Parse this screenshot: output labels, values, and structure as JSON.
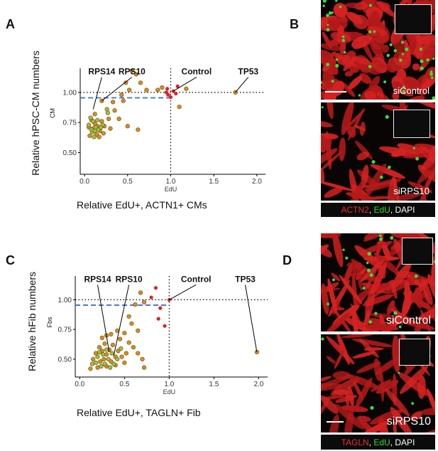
{
  "panels": {
    "A": "A",
    "B": "B",
    "C": "C",
    "D": "D"
  },
  "chart_data": [
    {
      "type": "scatter",
      "panel": "A",
      "title": "",
      "ylabel": "Relative hPSC-CM numbers",
      "ylabel_sub": "CM",
      "xlabel_axis": "EdU",
      "xlabel": "Relative EdU+, ACTN1+ CMs",
      "xlim": [
        -0.05,
        2.1
      ],
      "ylim": [
        0.32,
        1.2
      ],
      "xticks": [
        "0.0",
        "0.5",
        "1.0",
        "1.5",
        "2.0"
      ],
      "xtick_values": [
        0,
        0.5,
        1.0,
        1.5,
        2.0
      ],
      "yticks": [
        "0.50",
        "0.75",
        "1.00"
      ],
      "ytick_values": [
        0.5,
        0.75,
        1.0
      ],
      "hlines": [
        {
          "y": 1.0,
          "style": "dotted",
          "color": "#000000"
        },
        {
          "y": 0.955,
          "style": "dashed",
          "color": "#3a6fd8",
          "x_end": 1.0
        }
      ],
      "vlines": [
        {
          "x": 1.0,
          "style": "dotted",
          "color": "#000000"
        }
      ],
      "annotations": [
        {
          "label": "RPS14",
          "x": 0.2,
          "y": 1.15,
          "px": 0.1,
          "py": 0.86
        },
        {
          "label": "RPS10",
          "x": 0.55,
          "y": 1.15,
          "px": 0.2,
          "py": 0.93
        },
        {
          "label": "Control",
          "x": 1.3,
          "y": 1.15,
          "px": 1.03,
          "py": 1.01
        },
        {
          "label": "TP53",
          "x": 1.9,
          "y": 1.15,
          "px": 1.75,
          "py": 1.0
        }
      ],
      "series": [
        {
          "name": "orange",
          "color": "#e08a1e",
          "points": [
            [
              0.55,
              1.18
            ],
            [
              0.6,
              1.15
            ],
            [
              0.48,
              1.08
            ],
            [
              0.65,
              1.08
            ],
            [
              0.72,
              1.02
            ],
            [
              0.85,
              1.02
            ],
            [
              0.9,
              1.04
            ],
            [
              0.52,
              1.02
            ],
            [
              0.43,
              0.98
            ],
            [
              0.45,
              0.93
            ],
            [
              0.33,
              0.92
            ],
            [
              0.2,
              0.93
            ],
            [
              0.35,
              0.85
            ],
            [
              0.4,
              0.78
            ],
            [
              0.28,
              0.78
            ],
            [
              0.23,
              0.72
            ],
            [
              0.3,
              0.7
            ],
            [
              0.5,
              0.72
            ],
            [
              0.62,
              0.69
            ],
            [
              1.18,
              1.03
            ],
            [
              1.1,
              0.88
            ],
            [
              1.75,
              1.0
            ],
            [
              0.08,
              0.77
            ],
            [
              0.12,
              0.74
            ],
            [
              0.15,
              0.72
            ],
            [
              0.1,
              0.7
            ],
            [
              0.18,
              0.68
            ],
            [
              0.14,
              0.65
            ],
            [
              0.06,
              0.64
            ],
            [
              0.17,
              0.63
            ],
            [
              0.2,
              0.76
            ],
            [
              0.12,
              0.82
            ],
            [
              0.05,
              0.71
            ],
            [
              0.22,
              0.66
            ]
          ]
        },
        {
          "name": "green",
          "color": "#9fbf3c",
          "points": [
            [
              0.07,
              0.79
            ],
            [
              0.1,
              0.76
            ],
            [
              0.13,
              0.71
            ],
            [
              0.09,
              0.67
            ],
            [
              0.16,
              0.69
            ],
            [
              0.05,
              0.73
            ],
            [
              0.11,
              0.63
            ],
            [
              0.15,
              0.77
            ],
            [
              0.21,
              0.73
            ],
            [
              0.26,
              0.86
            ],
            [
              0.08,
              0.69
            ],
            [
              0.19,
              0.71
            ],
            [
              0.12,
              0.68
            ],
            [
              0.27,
              0.83
            ]
          ]
        },
        {
          "name": "red",
          "color": "#e02020",
          "points": [
            [
              0.95,
              1.0
            ],
            [
              0.97,
              0.98
            ],
            [
              1.0,
              0.96
            ],
            [
              1.03,
              1.01
            ],
            [
              1.06,
              0.99
            ],
            [
              1.08,
              1.05
            ],
            [
              0.96,
              1.03
            ]
          ]
        }
      ]
    },
    {
      "type": "scatter",
      "panel": "C",
      "title": "",
      "ylabel": "Relative hFib numbers",
      "ylabel_sub": "Fbs",
      "xlabel_axis": "EdU",
      "xlabel": "Relative EdU+, TAGLN+ Fib",
      "xlim": [
        -0.05,
        2.1
      ],
      "ylim": [
        0.35,
        1.2
      ],
      "xticks": [
        "0.0",
        "0.5",
        "1.0",
        "1.5",
        "2.0"
      ],
      "xtick_values": [
        0,
        0.5,
        1.0,
        1.5,
        2.0
      ],
      "yticks": [
        "0.50",
        "0.75",
        "1.00"
      ],
      "ytick_values": [
        0.5,
        0.75,
        1.0
      ],
      "hlines": [
        {
          "y": 1.0,
          "style": "dotted",
          "color": "#000000"
        },
        {
          "y": 0.955,
          "style": "dashed",
          "color": "#3a6fd8",
          "x_end": 1.0
        }
      ],
      "vlines": [
        {
          "x": 1.0,
          "style": "dotted",
          "color": "#000000"
        }
      ],
      "annotations": [
        {
          "label": "RPS14",
          "x": 0.2,
          "y": 1.15,
          "px": 0.33,
          "py": 0.56
        },
        {
          "label": "RPS10",
          "x": 0.55,
          "y": 1.15,
          "px": 0.38,
          "py": 0.53
        },
        {
          "label": "Control",
          "x": 1.3,
          "y": 1.15,
          "px": 1.0,
          "py": 1.0
        },
        {
          "label": "TP53",
          "x": 1.85,
          "y": 1.15,
          "px": 1.98,
          "py": 0.56
        }
      ],
      "series": [
        {
          "name": "orange",
          "color": "#e08a1e",
          "points": [
            [
              0.68,
              1.06
            ],
            [
              0.72,
              0.98
            ],
            [
              0.62,
              0.96
            ],
            [
              0.55,
              0.86
            ],
            [
              0.58,
              0.8
            ],
            [
              0.65,
              0.74
            ],
            [
              0.5,
              0.72
            ],
            [
              0.42,
              0.74
            ],
            [
              0.35,
              0.71
            ],
            [
              0.3,
              0.7
            ],
            [
              0.25,
              0.68
            ],
            [
              0.45,
              0.67
            ],
            [
              0.55,
              0.64
            ],
            [
              0.6,
              0.6
            ],
            [
              0.65,
              0.55
            ],
            [
              0.7,
              0.5
            ],
            [
              0.72,
              0.43
            ],
            [
              0.5,
              0.47
            ],
            [
              0.4,
              0.45
            ],
            [
              0.3,
              0.44
            ],
            [
              0.2,
              0.43
            ],
            [
              0.12,
              0.42
            ],
            [
              0.15,
              0.5
            ],
            [
              0.18,
              0.55
            ],
            [
              0.22,
              0.6
            ],
            [
              0.28,
              0.63
            ],
            [
              0.33,
              0.58
            ],
            [
              0.37,
              0.62
            ],
            [
              0.43,
              0.57
            ],
            [
              0.47,
              0.52
            ],
            [
              0.52,
              0.55
            ],
            [
              0.27,
              0.5
            ],
            [
              0.23,
              0.48
            ],
            [
              0.35,
              0.48
            ],
            [
              0.4,
              0.52
            ],
            [
              1.98,
              0.56
            ],
            [
              0.3,
              0.54
            ],
            [
              0.25,
              0.57
            ]
          ]
        },
        {
          "name": "green",
          "color": "#9fbf3c",
          "points": [
            [
              0.2,
              0.52
            ],
            [
              0.26,
              0.54
            ],
            [
              0.32,
              0.5
            ],
            [
              0.28,
              0.46
            ],
            [
              0.36,
              0.55
            ],
            [
              0.42,
              0.5
            ],
            [
              0.18,
              0.47
            ],
            [
              0.24,
              0.44
            ],
            [
              0.38,
              0.46
            ],
            [
              0.3,
              0.58
            ],
            [
              0.46,
              0.59
            ],
            [
              0.22,
              0.56
            ],
            [
              0.34,
              0.43
            ],
            [
              0.14,
              0.46
            ]
          ]
        },
        {
          "name": "red",
          "color": "#e02020",
          "points": [
            [
              0.8,
              1.02
            ],
            [
              0.85,
              1.1
            ],
            [
              0.9,
              0.93
            ],
            [
              0.88,
              0.84
            ],
            [
              0.95,
              0.78
            ],
            [
              1.0,
              1.0
            ]
          ]
        }
      ]
    }
  ],
  "panel_B": {
    "top_label": "siControl",
    "bottom_label": "siRPS10",
    "legend": {
      "stain1": "ACTN2",
      "sep1": ", ",
      "stain2": "EdU",
      "sep2": ", ",
      "stain3": "DAPI"
    },
    "colors": {
      "stain1": "#e83030",
      "stain2": "#33dd33",
      "stain3": "#ffffff"
    }
  },
  "panel_D": {
    "top_label": "siControl",
    "bottom_label": "siRPS10",
    "legend": {
      "stain1": "TAGLN",
      "sep1": ", ",
      "stain2": "EdU",
      "sep2": ", ",
      "stain3": "DAPI"
    },
    "colors": {
      "stain1": "#e83030",
      "stain2": "#33dd33",
      "stain3": "#ffffff"
    }
  }
}
